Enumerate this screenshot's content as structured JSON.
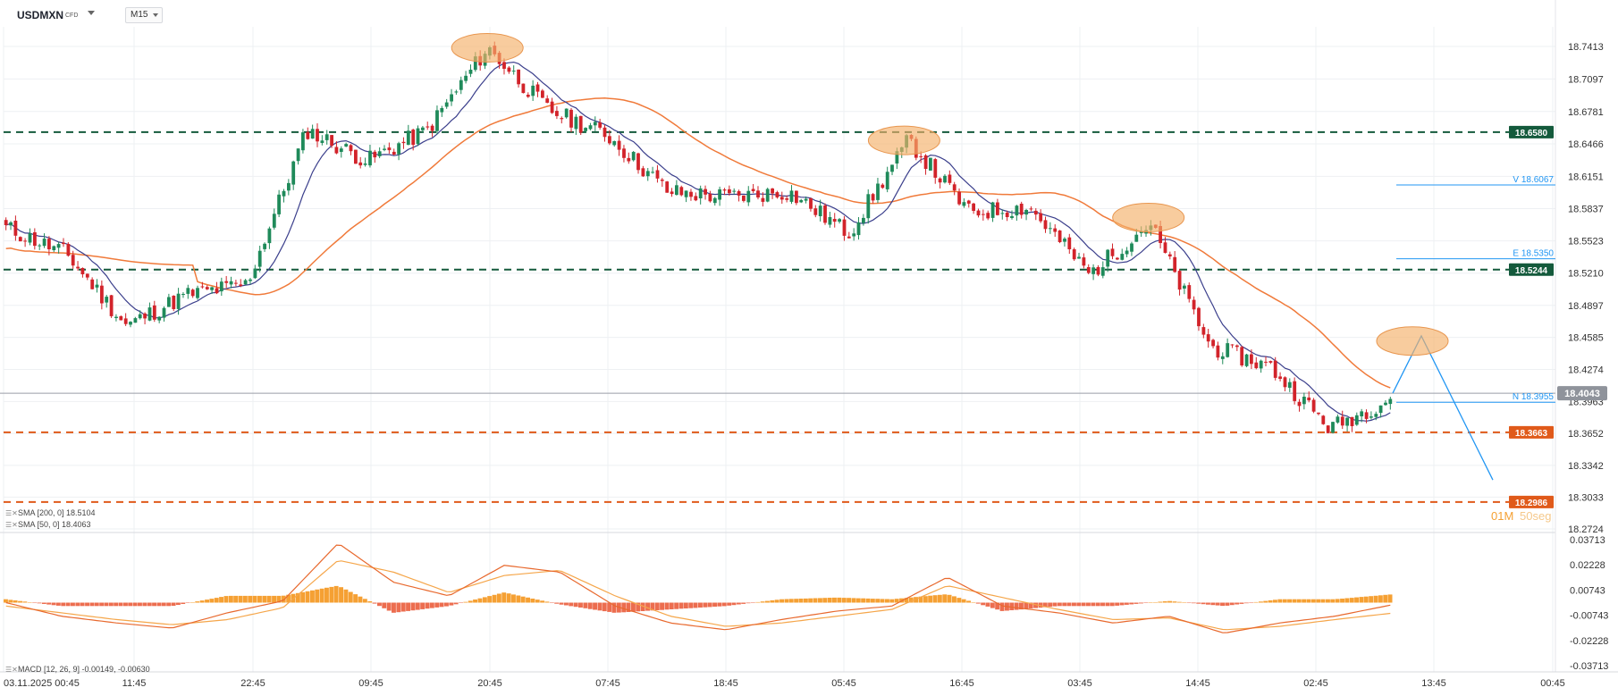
{
  "header": {
    "symbol": "USDMXN",
    "instrument_type": "CFD",
    "timeframe": "M15"
  },
  "colors": {
    "candle_up": "#1f8a5a",
    "candle_down": "#d2232a",
    "sma50": "#3b3f8c",
    "sma200": "#f07a3a",
    "support_resistance_green": "#145a3c",
    "support_resistance_orange": "#e05a1a",
    "projection": "#2196f3",
    "highlight_ellipse": "#f5b06a",
    "macd_line": "#e8692e",
    "signal_line": "#f5a64a",
    "hist_positive": "#f5a033",
    "hist_negative": "#ec6d4f",
    "current_price_bg": "#8f939b"
  },
  "price_axis": {
    "ticks": [
      "18.7413",
      "18.7097",
      "18.6781",
      "18.6466",
      "18.6151",
      "18.5837",
      "18.5523",
      "18.5210",
      "18.4897",
      "18.4585",
      "18.4274",
      "18.3963",
      "18.3652",
      "18.3342",
      "18.3033",
      "18.2724"
    ]
  },
  "macd_axis": {
    "ticks": [
      "0.03713",
      "0.02228",
      "0.00743",
      "-0.00743",
      "-0.02228",
      "-0.03713"
    ]
  },
  "time_axis": {
    "labels": [
      "03.11.2025  00:45",
      "11:45",
      "22:45",
      "09:45",
      "20:45",
      "07:45",
      "18:45",
      "05:45",
      "16:45",
      "03:45",
      "14:45",
      "02:45",
      "13:45",
      "00:45"
    ]
  },
  "levels": {
    "resistance_1": "18.6580",
    "resistance_2": "18.5244",
    "support_1": "18.3663",
    "support_2": "18.2986",
    "current_price": "18.4043"
  },
  "projection_labels": {
    "v": "V 18.6067",
    "e": "E 18.5350",
    "n": "N 18.3955"
  },
  "legend": {
    "sma200": "SMA [200, 0]  18.5104",
    "sma50": "SMA [50, 0]  18.4063",
    "macd": "MACD [12, 26, 9]  -0.00149,  -0.00630"
  },
  "countdown": {
    "minutes": "01M",
    "seconds": "50seg"
  },
  "chart_data": [
    {
      "type": "candlestick",
      "title": "USDMXN M15",
      "ylim": [
        18.2724,
        18.7413
      ],
      "x_labels": [
        "03.11.2025 00:45",
        "11:45",
        "22:45",
        "09:45",
        "20:45",
        "07:45",
        "18:45",
        "05:45",
        "16:45",
        "03:45",
        "14:45",
        "02:45",
        "13:45",
        "00:45"
      ],
      "close_path": [
        {
          "x": "00:45",
          "y": 18.565
        },
        {
          "x": "05:45",
          "y": 18.54
        },
        {
          "x": "11:45",
          "y": 18.47
        },
        {
          "x": "17:45",
          "y": 18.5
        },
        {
          "x": "22:45",
          "y": 18.51
        },
        {
          "x": "04:45",
          "y": 18.66
        },
        {
          "x": "09:45",
          "y": 18.63
        },
        {
          "x": "14:45",
          "y": 18.66
        },
        {
          "x": "20:45",
          "y": 18.74
        },
        {
          "x": "01:45",
          "y": 18.68
        },
        {
          "x": "07:45",
          "y": 18.655
        },
        {
          "x": "12:45",
          "y": 18.6
        },
        {
          "x": "18:45",
          "y": 18.595
        },
        {
          "x": "23:45",
          "y": 18.6
        },
        {
          "x": "05:45",
          "y": 18.56
        },
        {
          "x": "10:45",
          "y": 18.65
        },
        {
          "x": "16:45",
          "y": 18.58
        },
        {
          "x": "22:45",
          "y": 18.585
        },
        {
          "x": "03:45",
          "y": 18.52
        },
        {
          "x": "08:45",
          "y": 18.57
        },
        {
          "x": "14:45",
          "y": 18.45
        },
        {
          "x": "20:45",
          "y": 18.43
        },
        {
          "x": "02:45",
          "y": 18.37
        },
        {
          "x": "07:45",
          "y": 18.4
        }
      ],
      "series": [
        {
          "name": "SMA [200, 0]",
          "last": 18.5104
        },
        {
          "name": "SMA [50, 0]",
          "last": 18.4063
        }
      ],
      "horizontal_levels": [
        18.658,
        18.5244,
        18.3663,
        18.2986
      ],
      "current_price": 18.4043,
      "projection": {
        "V": 18.6067,
        "E": 18.535,
        "N": 18.3955
      }
    },
    {
      "type": "line",
      "title": "MACD [12, 26, 9]",
      "ylim": [
        -0.03713,
        0.03713
      ],
      "series": [
        {
          "name": "MACD",
          "last": -0.00149
        },
        {
          "name": "Signal",
          "last": -0.0063
        }
      ],
      "anchors_macd": [
        0,
        -0.008,
        -0.012,
        -0.015,
        -0.006,
        0.001,
        0.035,
        0.012,
        0.004,
        0.022,
        0.018,
        -0.002,
        -0.012,
        -0.016,
        -0.01,
        -0.005,
        -0.002,
        0.015,
        -0.002,
        -0.006,
        -0.012,
        -0.008,
        -0.018,
        -0.012,
        -0.008,
        -0.00149
      ],
      "anchors_signal": [
        -0.002,
        -0.006,
        -0.01,
        -0.013,
        -0.01,
        -0.003,
        0.025,
        0.018,
        0.006,
        0.016,
        0.019,
        0.004,
        -0.008,
        -0.014,
        -0.012,
        -0.008,
        -0.004,
        0.01,
        0.003,
        -0.004,
        -0.01,
        -0.009,
        -0.016,
        -0.014,
        -0.01,
        -0.0063
      ]
    }
  ]
}
